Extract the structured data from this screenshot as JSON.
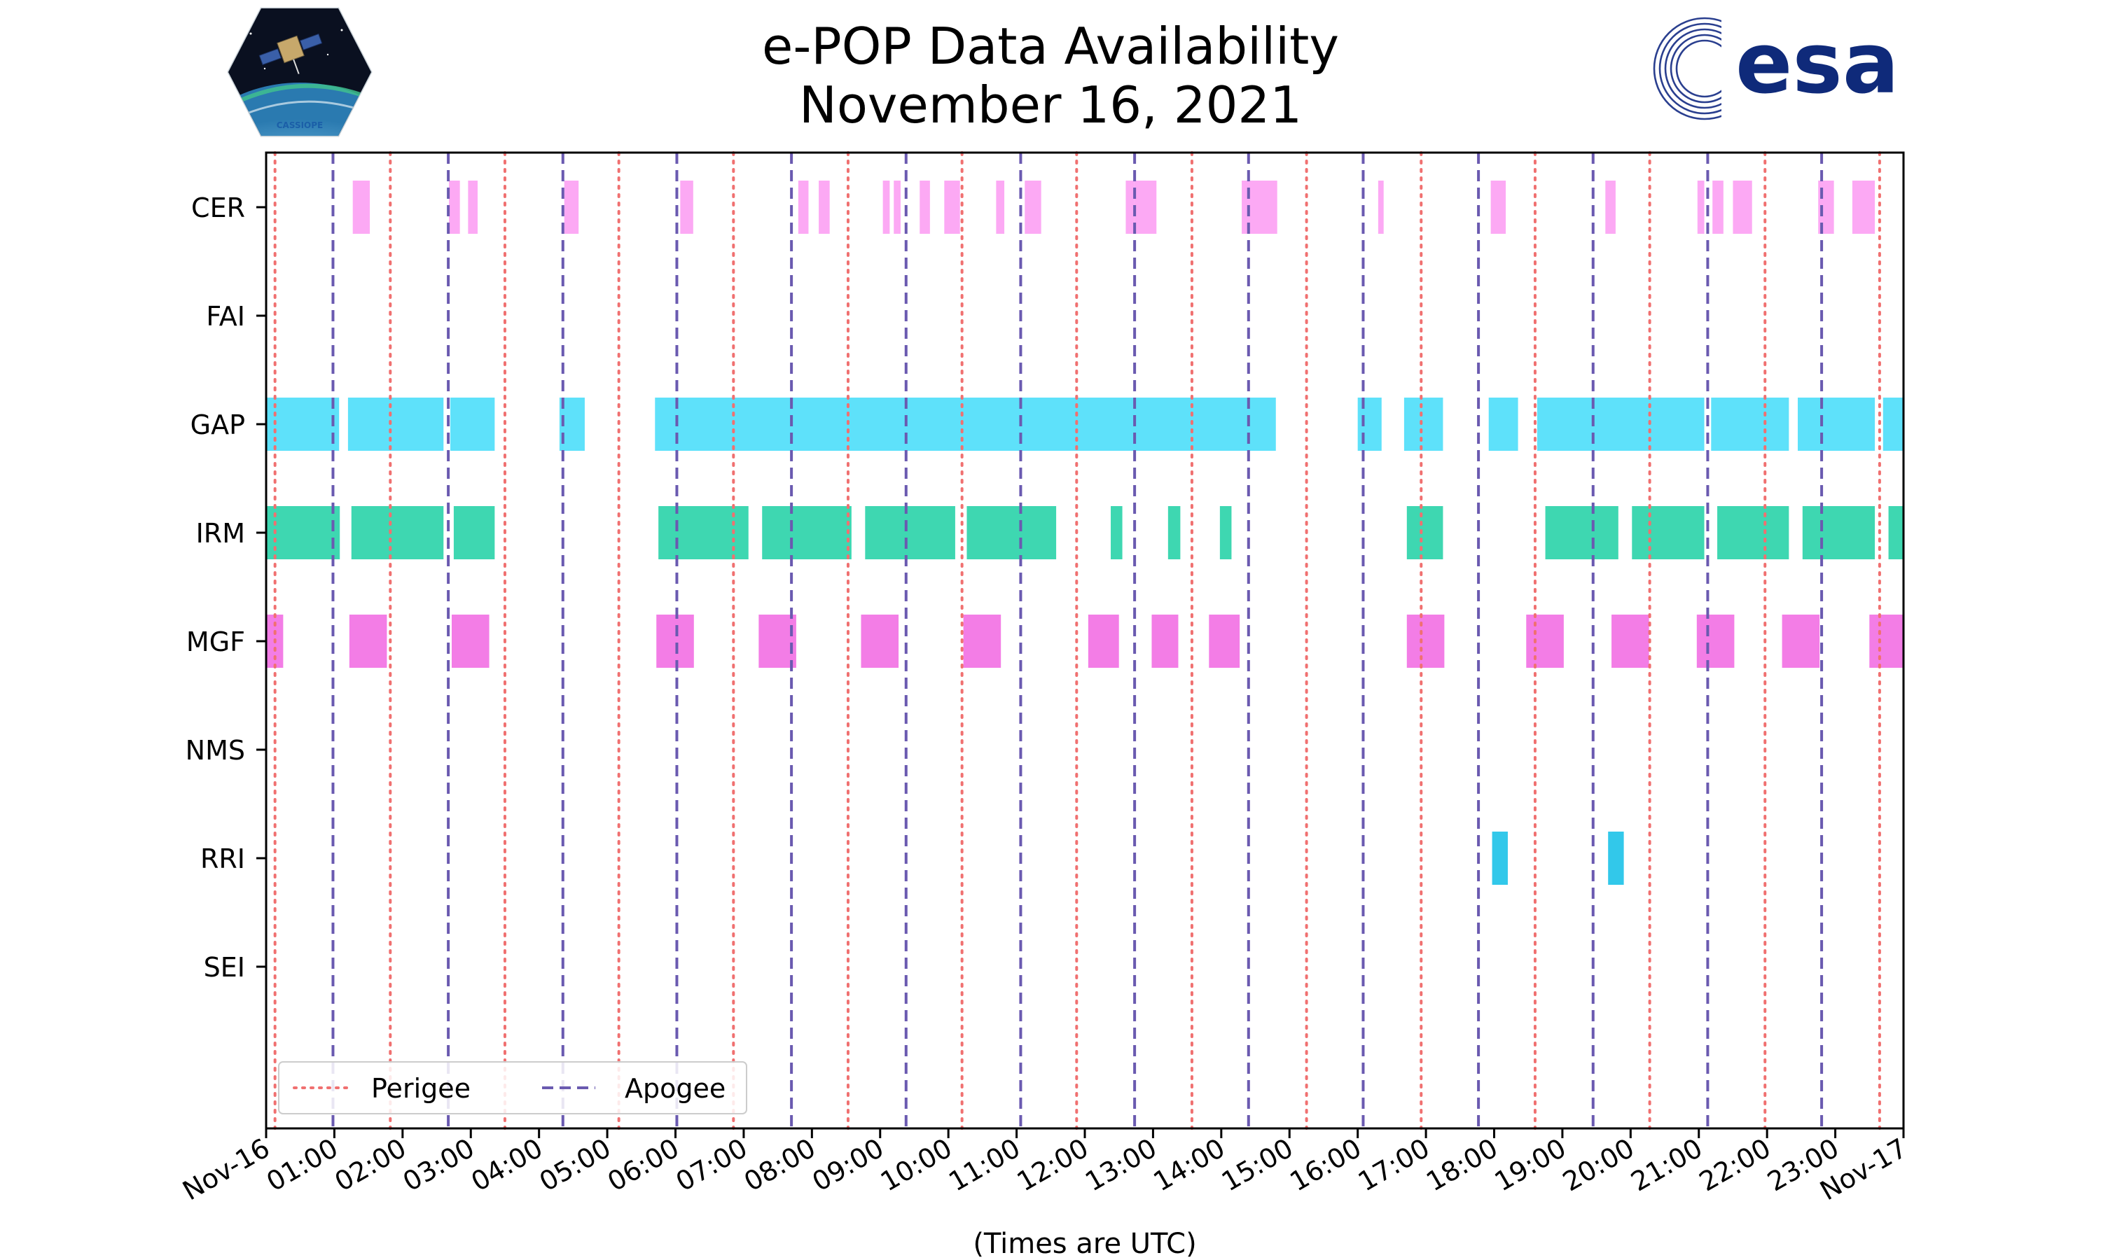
{
  "chart_data": {
    "type": "timeline",
    "title": "e-POP Data Availability",
    "subtitle": "November 16, 2021",
    "xlabel": "(Times are UTC)",
    "x_unit": "hours UTC",
    "xlim": [
      0,
      24
    ],
    "x_tick_labels": [
      "Nov-16",
      "01:00",
      "02:00",
      "03:00",
      "04:00",
      "05:00",
      "06:00",
      "07:00",
      "08:00",
      "09:00",
      "10:00",
      "11:00",
      "12:00",
      "13:00",
      "14:00",
      "15:00",
      "16:00",
      "17:00",
      "18:00",
      "19:00",
      "20:00",
      "21:00",
      "22:00",
      "23:00",
      "Nov-17"
    ],
    "y_categories": [
      "CER",
      "FAI",
      "GAP",
      "IRM",
      "MGF",
      "NMS",
      "RRI",
      "SEI"
    ],
    "series": [
      {
        "name": "CER",
        "color": "#fca9f4",
        "intervals": [
          [
            1.27,
            1.52
          ],
          [
            2.68,
            2.84
          ],
          [
            2.96,
            3.1
          ],
          [
            4.37,
            4.58
          ],
          [
            6.07,
            6.26
          ],
          [
            7.8,
            7.95
          ],
          [
            8.1,
            8.26
          ],
          [
            9.04,
            9.14
          ],
          [
            9.2,
            9.3
          ],
          [
            9.58,
            9.73
          ],
          [
            9.94,
            10.17
          ],
          [
            10.7,
            10.82
          ],
          [
            11.12,
            11.36
          ],
          [
            12.6,
            12.72
          ],
          [
            12.72,
            13.05
          ],
          [
            14.3,
            14.82
          ],
          [
            16.3,
            16.38
          ],
          [
            17.95,
            18.17
          ],
          [
            19.63,
            19.78
          ],
          [
            20.98,
            21.08
          ],
          [
            21.2,
            21.36
          ],
          [
            21.5,
            21.78
          ],
          [
            22.75,
            22.98
          ],
          [
            23.25,
            23.58
          ]
        ]
      },
      {
        "name": "FAI",
        "color": "#5ee1fa",
        "intervals": []
      },
      {
        "name": "GAP",
        "color": "#5ee1fa",
        "intervals": [
          [
            0,
            1.07
          ],
          [
            1.2,
            2.6
          ],
          [
            2.7,
            3.35
          ],
          [
            4.3,
            4.67
          ],
          [
            5.7,
            14.8
          ],
          [
            16,
            16.35
          ],
          [
            16.68,
            17.25
          ],
          [
            17.92,
            18.35
          ],
          [
            18.63,
            21.08
          ],
          [
            21.18,
            22.32
          ],
          [
            22.45,
            23.58
          ],
          [
            23.7,
            24
          ]
        ]
      },
      {
        "name": "IRM",
        "color": "#3ed7b1",
        "intervals": [
          [
            0,
            1.08
          ],
          [
            1.25,
            2.6
          ],
          [
            2.75,
            3.35
          ],
          [
            5.75,
            7.07
          ],
          [
            7.27,
            8.58
          ],
          [
            8.78,
            10.1
          ],
          [
            10.27,
            11.58
          ],
          [
            12.38,
            12.55
          ],
          [
            13.22,
            13.4
          ],
          [
            13.98,
            14.15
          ],
          [
            16.72,
            17.25
          ],
          [
            18.75,
            19.82
          ],
          [
            20.02,
            21.08
          ],
          [
            21.27,
            22.32
          ],
          [
            22.52,
            23.58
          ],
          [
            23.78,
            24
          ]
        ]
      },
      {
        "name": "MGF",
        "color": "#f37de6",
        "intervals": [
          [
            0,
            0.25
          ],
          [
            1.22,
            1.77
          ],
          [
            2.72,
            3.27
          ],
          [
            5.72,
            6.27
          ],
          [
            7.22,
            7.77
          ],
          [
            8.72,
            9.27
          ],
          [
            10.22,
            10.77
          ],
          [
            12.05,
            12.5
          ],
          [
            12.98,
            13.37
          ],
          [
            13.82,
            14.27
          ],
          [
            16.72,
            17.27
          ],
          [
            18.47,
            19.02
          ],
          [
            19.72,
            20.27
          ],
          [
            20.97,
            21.52
          ],
          [
            22.22,
            22.77
          ],
          [
            23.5,
            24
          ]
        ]
      },
      {
        "name": "NMS",
        "color": "#5ee1fa",
        "intervals": []
      },
      {
        "name": "RRI",
        "color": "#32c8ea",
        "intervals": [
          [
            17.97,
            18.2
          ],
          [
            19.67,
            19.9
          ]
        ]
      },
      {
        "name": "SEI",
        "color": "#5ee1fa",
        "intervals": []
      }
    ],
    "perigee_hours": [
      0.13,
      1.82,
      3.5,
      5.17,
      6.85,
      8.53,
      10.2,
      11.88,
      13.57,
      15.25,
      16.93,
      18.6,
      20.28,
      21.97,
      23.65
    ],
    "apogee_hours": [
      0.98,
      2.67,
      4.35,
      6.02,
      7.7,
      9.38,
      11.06,
      12.73,
      14.4,
      16.08,
      17.77,
      19.45,
      21.13,
      22.8
    ],
    "legend": {
      "position": "lower-left",
      "entries": [
        {
          "label": "Perigee",
          "color": "#f07070",
          "style": "dotted"
        },
        {
          "label": "Apogee",
          "color": "#6a5ab0",
          "style": "dashed"
        }
      ]
    }
  },
  "logos": {
    "left_caption": "CASSIOPE",
    "right_text": "esa"
  },
  "colors": {
    "esa_blue": "#0f2a7a",
    "axis": "#000000"
  }
}
